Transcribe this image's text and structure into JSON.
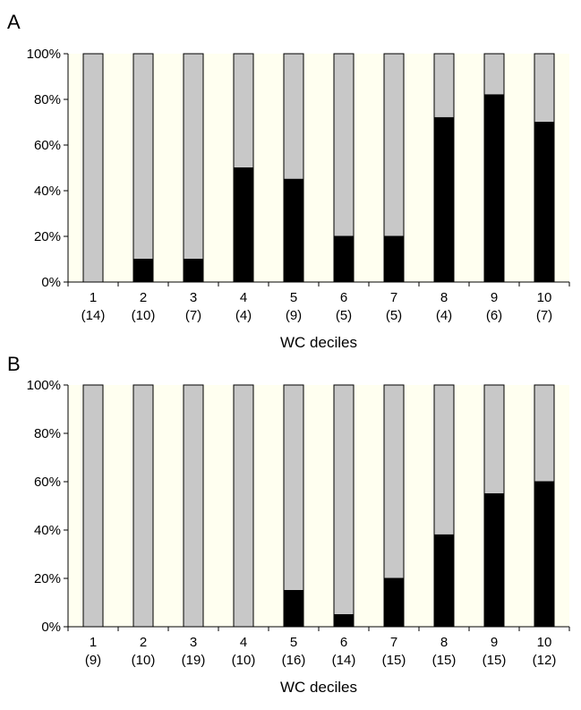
{
  "chart_data": [
    {
      "type": "bar",
      "stacked": true,
      "panel_label": "A",
      "categories": [
        "1",
        "2",
        "3",
        "4",
        "5",
        "6",
        "7",
        "8",
        "9",
        "10"
      ],
      "category_counts": [
        "(14)",
        "(10)",
        "(7)",
        "(4)",
        "(9)",
        "(5)",
        "(5)",
        "(4)",
        "(6)",
        "(7)"
      ],
      "series": [
        {
          "values": [
            0,
            10,
            10,
            50,
            45,
            20,
            20,
            72,
            82,
            70
          ],
          "color": "#000000"
        },
        {
          "values": [
            100,
            90,
            90,
            50,
            55,
            80,
            80,
            28,
            18,
            30
          ],
          "color": "#c8c8c8"
        }
      ],
      "xlabel": "WC deciles",
      "ylabel": "",
      "ylim": [
        0,
        100
      ],
      "yticks": [
        "0%",
        "20%",
        "40%",
        "60%",
        "80%",
        "100%"
      ],
      "plot_background": "#fffff0",
      "grid": false
    },
    {
      "type": "bar",
      "stacked": true,
      "panel_label": "B",
      "categories": [
        "1",
        "2",
        "3",
        "4",
        "5",
        "6",
        "7",
        "8",
        "9",
        "10"
      ],
      "category_counts": [
        "(9)",
        "(10)",
        "(19)",
        "(10)",
        "(16)",
        "(14)",
        "(15)",
        "(15)",
        "(15)",
        "(12)"
      ],
      "series": [
        {
          "values": [
            0,
            0,
            0,
            0,
            15,
            5,
            20,
            38,
            55,
            60
          ],
          "color": "#000000"
        },
        {
          "values": [
            100,
            100,
            100,
            100,
            85,
            95,
            80,
            62,
            45,
            40
          ],
          "color": "#c8c8c8"
        }
      ],
      "xlabel": "WC deciles",
      "ylabel": "",
      "ylim": [
        0,
        100
      ],
      "yticks": [
        "0%",
        "20%",
        "40%",
        "60%",
        "80%",
        "100%"
      ],
      "plot_background": "#fffff0",
      "grid": false
    }
  ]
}
